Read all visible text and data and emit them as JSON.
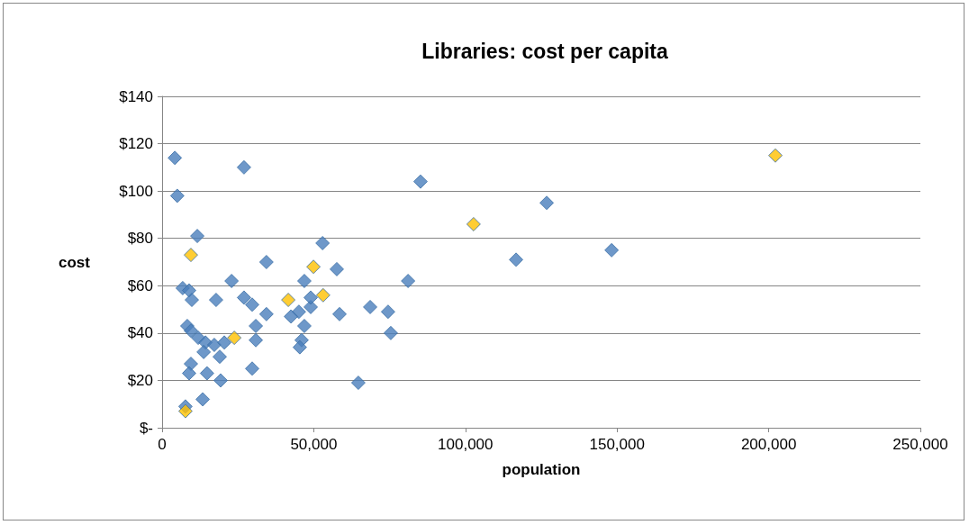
{
  "chart_data": {
    "type": "scatter",
    "title": "Libraries: cost per capita",
    "xlabel": "population",
    "ylabel": "cost",
    "marker": "diamond",
    "grid": "y",
    "xlim": [
      0,
      250000
    ],
    "xticks": [
      0,
      {
        "value": 50000,
        "label": "50,000"
      },
      {
        "value": 100000,
        "label": "100,000"
      },
      {
        "value": 150000,
        "label": "150,000"
      },
      {
        "value": 200000,
        "label": "200,000"
      },
      {
        "value": 250000,
        "label": "250,000"
      }
    ],
    "ylim": [
      0,
      140
    ],
    "yticks": [
      {
        "value": 0,
        "label": "$-"
      },
      {
        "value": 20,
        "label": "$20"
      },
      {
        "value": 40,
        "label": "$40"
      },
      {
        "value": 60,
        "label": "$60"
      },
      {
        "value": 80,
        "label": "$80"
      },
      {
        "value": 100,
        "label": "$100"
      },
      {
        "value": 120,
        "label": "$120"
      },
      {
        "value": 140,
        "label": "$140"
      }
    ],
    "series": [
      {
        "color": "#4a7ebb",
        "x": [
          4200,
          5000,
          27000,
          11600,
          34400,
          22900,
          6800,
          8900,
          9800,
          17800,
          27000,
          29700,
          34400,
          30900,
          30900,
          29700,
          8300,
          9500,
          11900,
          14300,
          17200,
          19000,
          13700,
          20500,
          9500,
          8900,
          14800,
          19300,
          13400,
          7700,
          52900,
          46900,
          57600,
          49000,
          49000,
          45100,
          42500,
          46900,
          46000,
          45400,
          58500,
          68600,
          74500,
          75400,
          64700,
          81100,
          85200,
          116700,
          126800,
          148200
        ],
        "values": [
          114,
          98,
          110,
          81,
          70,
          62,
          59,
          58,
          54,
          54,
          55,
          52,
          48,
          43,
          37,
          25,
          43,
          41,
          38,
          36,
          35,
          30,
          32,
          36,
          27,
          23,
          23,
          20,
          12,
          9,
          78,
          62,
          67,
          51,
          55,
          49,
          47,
          43,
          37,
          34,
          48,
          51,
          49,
          40,
          19,
          62,
          104,
          71,
          95,
          75
        ]
      },
      {
        "color": "#ffc000",
        "x": [
          7700,
          9500,
          23800,
          41600,
          49900,
          53100,
          102700,
          202200
        ],
        "values": [
          7,
          73,
          38,
          54,
          68,
          56,
          86,
          115
        ]
      }
    ]
  }
}
